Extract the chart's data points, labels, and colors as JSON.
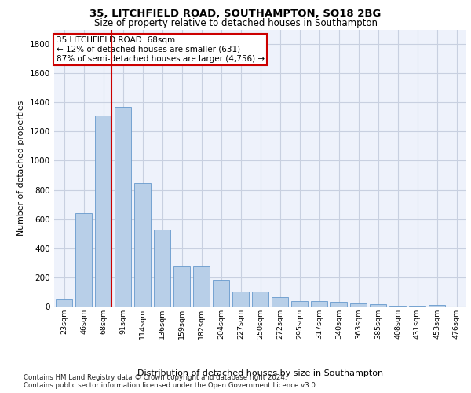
{
  "title_line1": "35, LITCHFIELD ROAD, SOUTHAMPTON, SO18 2BG",
  "title_line2": "Size of property relative to detached houses in Southampton",
  "xlabel": "Distribution of detached houses by size in Southampton",
  "ylabel": "Number of detached properties",
  "categories": [
    "23sqm",
    "46sqm",
    "68sqm",
    "91sqm",
    "114sqm",
    "136sqm",
    "159sqm",
    "182sqm",
    "204sqm",
    "227sqm",
    "250sqm",
    "272sqm",
    "295sqm",
    "317sqm",
    "340sqm",
    "363sqm",
    "385sqm",
    "408sqm",
    "431sqm",
    "453sqm",
    "476sqm"
  ],
  "values": [
    50,
    640,
    1310,
    1370,
    845,
    530,
    275,
    275,
    185,
    105,
    105,
    65,
    40,
    38,
    30,
    22,
    15,
    5,
    5,
    13,
    0
  ],
  "bar_color": "#b8cfe8",
  "bar_edge_color": "#6699cc",
  "vline_x_index": 2,
  "vline_color": "#cc0000",
  "annotation_text": "35 LITCHFIELD ROAD: 68sqm\n← 12% of detached houses are smaller (631)\n87% of semi-detached houses are larger (4,756) →",
  "annotation_box_color": "#cc0000",
  "ylim": [
    0,
    1900
  ],
  "yticks": [
    0,
    200,
    400,
    600,
    800,
    1000,
    1200,
    1400,
    1600,
    1800
  ],
  "footnote1": "Contains HM Land Registry data © Crown copyright and database right 2024.",
  "footnote2": "Contains public sector information licensed under the Open Government Licence v3.0.",
  "background_color": "#eef2fb",
  "grid_color": "#c8d0e0"
}
